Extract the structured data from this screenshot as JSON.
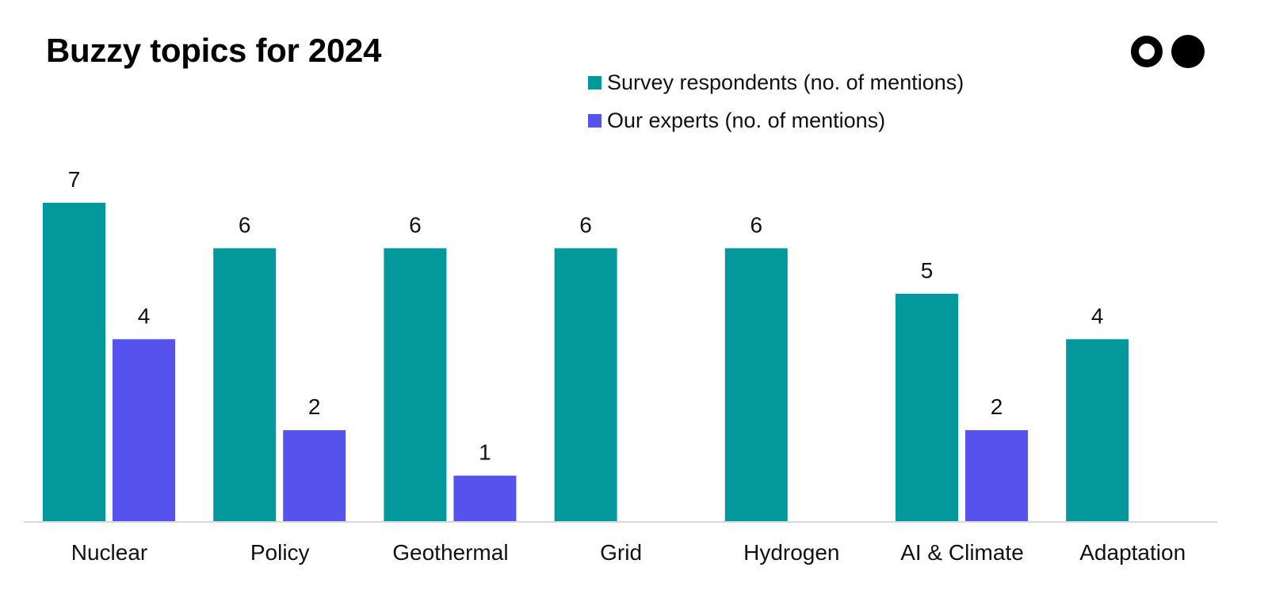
{
  "title": "Buzzy topics for 2024",
  "logo": {
    "icon": "two-circles-logo"
  },
  "legend": [
    {
      "label": "Survey respondents (no. of mentions)",
      "color": "#03999c"
    },
    {
      "label": "Our experts (no. of mentions)",
      "color": "#5552ee"
    }
  ],
  "chart_data": {
    "type": "bar",
    "title": "Buzzy topics for 2024",
    "categories": [
      "Nuclear",
      "Policy",
      "Geothermal",
      "Grid",
      "Hydrogen",
      "AI & Climate",
      "Adaptation"
    ],
    "series": [
      {
        "name": "Survey respondents (no. of mentions)",
        "color": "#03999c",
        "values": [
          7,
          6,
          6,
          6,
          6,
          5,
          4
        ]
      },
      {
        "name": "Our experts (no. of mentions)",
        "color": "#5552ee",
        "values": [
          4,
          2,
          1,
          null,
          null,
          2,
          null
        ]
      }
    ],
    "ylim": [
      0,
      7
    ],
    "xlabel": "",
    "ylabel": "",
    "grid": false,
    "data_labels": true,
    "legend_position": "top"
  }
}
